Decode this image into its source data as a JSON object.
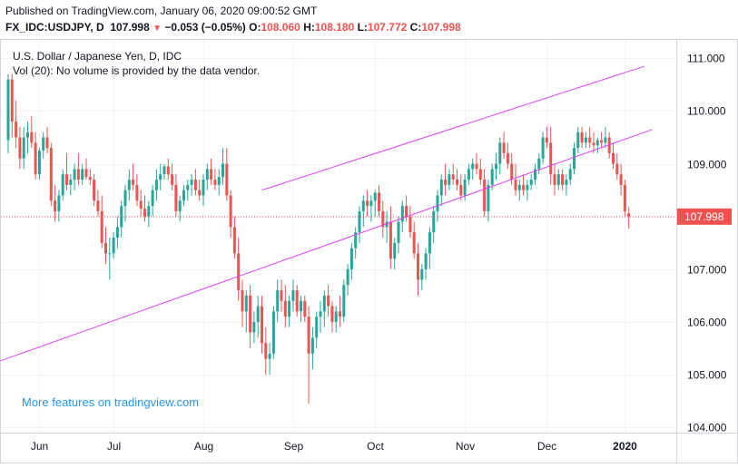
{
  "header": {
    "published": "Published on TradingView.com, January 06, 2020 09:00:52 GMT",
    "symbol": "FX_IDC:USDJPY, D",
    "last": "107.998",
    "change_arrow": "▼",
    "change": "−0.053 (−0.05%)",
    "open_label": "O:",
    "open": "108.060",
    "high_label": "H:",
    "high": "108.180",
    "low_label": "L:",
    "low": "107.772",
    "close_label": "C:",
    "close": "107.998"
  },
  "chart_data": {
    "type": "candlestick",
    "title": "U.S. Dollar / Japanese Yen, D, IDC",
    "subtitle": "Vol (20): No volume is provided by the data vendor.",
    "watermark": "More features on tradingview.com",
    "x_ticks": [
      "Jun",
      "Jul",
      "Aug",
      "Sep",
      "Oct",
      "Nov",
      "Dec",
      "2020"
    ],
    "y_ticks": [
      "111.000",
      "110.000",
      "109.000",
      "108.000",
      "107.000",
      "106.000",
      "105.000",
      "104.000"
    ],
    "ylim": [
      103.9,
      111.35
    ],
    "last_price": 107.998,
    "last_price_label": "107.998",
    "colors": {
      "up": "#26a69a",
      "down": "#ef5350",
      "trendline": "#e040fb",
      "price_line": "#ef5350",
      "watermark": "#2196f3"
    },
    "candles": [
      [
        109.45,
        110.7,
        109.2,
        110.6
      ],
      [
        110.6,
        110.7,
        109.5,
        109.8
      ],
      [
        109.8,
        110.2,
        109.3,
        109.5
      ],
      [
        109.5,
        109.7,
        108.9,
        109.1
      ],
      [
        109.1,
        109.7,
        108.9,
        109.5
      ],
      [
        109.5,
        109.8,
        109.2,
        109.6
      ],
      [
        109.6,
        109.9,
        109.3,
        109.4
      ],
      [
        109.4,
        109.6,
        108.7,
        108.8
      ],
      [
        108.8,
        109.3,
        108.7,
        109.25
      ],
      [
        109.25,
        109.6,
        109.1,
        109.5
      ],
      [
        109.5,
        109.7,
        109.2,
        109.3
      ],
      [
        109.3,
        109.4,
        108.2,
        108.3
      ],
      [
        108.3,
        108.6,
        107.9,
        108.1
      ],
      [
        108.1,
        108.5,
        107.9,
        108.4
      ],
      [
        108.4,
        108.9,
        108.3,
        108.8
      ],
      [
        108.8,
        109.2,
        108.5,
        108.6
      ],
      [
        108.6,
        108.8,
        108.4,
        108.7
      ],
      [
        108.7,
        109.0,
        108.5,
        108.9
      ],
      [
        108.9,
        109.2,
        108.6,
        108.7
      ],
      [
        108.7,
        109.0,
        108.6,
        108.9
      ],
      [
        108.9,
        109.1,
        108.7,
        108.75
      ],
      [
        108.75,
        108.9,
        108.6,
        108.7
      ],
      [
        108.7,
        108.8,
        108.2,
        108.3
      ],
      [
        108.3,
        108.5,
        108.0,
        108.1
      ],
      [
        108.1,
        108.4,
        107.4,
        107.5
      ],
      [
        107.5,
        107.8,
        107.1,
        107.3
      ],
      [
        107.3,
        107.6,
        106.8,
        107.3
      ],
      [
        107.3,
        107.7,
        107.2,
        107.6
      ],
      [
        107.6,
        108.0,
        107.4,
        107.8
      ],
      [
        107.8,
        108.3,
        107.6,
        108.2
      ],
      [
        108.2,
        108.6,
        107.9,
        108.5
      ],
      [
        108.5,
        108.9,
        108.3,
        108.7
      ],
      [
        108.7,
        109.0,
        108.5,
        108.6
      ],
      [
        108.6,
        108.8,
        108.2,
        108.3
      ],
      [
        108.3,
        108.5,
        108.0,
        108.15
      ],
      [
        108.15,
        108.4,
        107.9,
        108.0
      ],
      [
        108.0,
        108.3,
        107.8,
        108.2
      ],
      [
        108.2,
        108.6,
        108.0,
        108.5
      ],
      [
        108.5,
        108.9,
        108.3,
        108.7
      ],
      [
        108.7,
        109.0,
        108.5,
        108.8
      ],
      [
        108.8,
        109.0,
        108.7,
        108.95
      ],
      [
        108.95,
        109.1,
        108.7,
        108.8
      ],
      [
        108.8,
        109.0,
        108.5,
        108.6
      ],
      [
        108.6,
        108.8,
        108.0,
        108.1
      ],
      [
        108.1,
        108.4,
        107.9,
        108.3
      ],
      [
        108.3,
        108.6,
        108.2,
        108.5
      ],
      [
        108.5,
        108.7,
        108.3,
        108.6
      ],
      [
        108.6,
        108.8,
        108.4,
        108.7
      ],
      [
        108.7,
        108.9,
        108.4,
        108.5
      ],
      [
        108.5,
        108.7,
        108.3,
        108.4
      ],
      [
        108.4,
        108.8,
        108.2,
        108.7
      ],
      [
        108.7,
        109.0,
        108.5,
        108.9
      ],
      [
        108.9,
        109.1,
        108.6,
        108.7
      ],
      [
        108.7,
        108.9,
        108.5,
        108.6
      ],
      [
        108.6,
        108.9,
        108.4,
        108.75
      ],
      [
        108.75,
        109.3,
        108.6,
        109.0
      ],
      [
        109.0,
        109.3,
        108.3,
        108.4
      ],
      [
        108.4,
        108.5,
        107.6,
        107.8
      ],
      [
        107.8,
        108.0,
        107.2,
        107.3
      ],
      [
        107.3,
        107.6,
        106.4,
        106.6
      ],
      [
        106.6,
        106.8,
        105.9,
        106.2
      ],
      [
        106.2,
        106.6,
        105.8,
        106.5
      ],
      [
        106.5,
        106.7,
        105.5,
        105.8
      ],
      [
        105.8,
        106.2,
        105.6,
        106.0
      ],
      [
        106.0,
        106.5,
        105.7,
        106.3
      ],
      [
        106.3,
        106.5,
        105.4,
        105.6
      ],
      [
        105.6,
        105.9,
        105.0,
        105.3
      ],
      [
        105.3,
        105.6,
        105.0,
        105.4
      ],
      [
        105.4,
        106.3,
        105.3,
        106.2
      ],
      [
        106.2,
        106.8,
        106.0,
        106.6
      ],
      [
        106.6,
        106.8,
        106.2,
        106.4
      ],
      [
        106.4,
        106.7,
        105.9,
        106.1
      ],
      [
        106.1,
        106.5,
        105.9,
        106.4
      ],
      [
        106.4,
        106.8,
        106.2,
        106.6
      ],
      [
        106.6,
        106.7,
        106.1,
        106.2
      ],
      [
        106.2,
        106.5,
        106.0,
        106.4
      ],
      [
        106.4,
        106.5,
        106.0,
        106.1
      ],
      [
        106.1,
        106.3,
        104.45,
        105.4
      ],
      [
        105.4,
        105.9,
        105.1,
        105.7
      ],
      [
        105.7,
        106.2,
        105.5,
        106.1
      ],
      [
        106.1,
        106.4,
        105.8,
        106.2
      ],
      [
        106.2,
        106.6,
        105.9,
        106.5
      ],
      [
        106.5,
        106.7,
        106.1,
        106.3
      ],
      [
        106.3,
        106.4,
        105.8,
        106.0
      ],
      [
        106.0,
        106.3,
        105.8,
        106.2
      ],
      [
        106.2,
        106.5,
        105.9,
        106.1
      ],
      [
        106.1,
        106.8,
        106.0,
        106.7
      ],
      [
        106.7,
        107.1,
        106.5,
        107.0
      ],
      [
        107.0,
        107.5,
        106.8,
        107.4
      ],
      [
        107.4,
        107.8,
        107.2,
        107.7
      ],
      [
        107.7,
        108.2,
        107.5,
        108.1
      ],
      [
        108.1,
        108.4,
        107.8,
        108.3
      ],
      [
        108.3,
        108.5,
        108.0,
        108.2
      ],
      [
        108.2,
        108.4,
        107.9,
        108.3
      ],
      [
        108.3,
        108.5,
        108.0,
        108.45
      ],
      [
        108.45,
        108.6,
        108.0,
        108.1
      ],
      [
        108.1,
        108.3,
        107.6,
        107.8
      ],
      [
        107.8,
        108.1,
        107.5,
        107.9
      ],
      [
        107.9,
        108.2,
        107.0,
        107.2
      ],
      [
        107.2,
        107.6,
        107.0,
        107.5
      ],
      [
        107.5,
        108.0,
        107.3,
        107.9
      ],
      [
        107.9,
        108.3,
        107.7,
        108.2
      ],
      [
        108.2,
        108.4,
        107.9,
        108.0
      ],
      [
        108.0,
        108.2,
        107.6,
        107.7
      ],
      [
        107.7,
        107.9,
        107.2,
        107.3
      ],
      [
        107.3,
        107.5,
        106.5,
        106.8
      ],
      [
        106.8,
        107.1,
        106.6,
        107.0
      ],
      [
        107.0,
        107.4,
        106.8,
        107.3
      ],
      [
        107.3,
        107.8,
        107.0,
        107.7
      ],
      [
        107.7,
        108.2,
        107.5,
        108.1
      ],
      [
        108.1,
        108.5,
        107.9,
        108.4
      ],
      [
        108.4,
        108.8,
        108.2,
        108.7
      ],
      [
        108.7,
        109.0,
        108.4,
        108.6
      ],
      [
        108.6,
        108.9,
        108.5,
        108.8
      ],
      [
        108.8,
        109.0,
        108.6,
        108.7
      ],
      [
        108.7,
        108.9,
        108.5,
        108.6
      ],
      [
        108.6,
        108.8,
        108.3,
        108.4
      ],
      [
        108.4,
        108.8,
        108.3,
        108.7
      ],
      [
        108.7,
        109.0,
        108.6,
        108.9
      ],
      [
        108.9,
        109.1,
        108.7,
        109.0
      ],
      [
        109.0,
        109.2,
        108.8,
        108.9
      ],
      [
        108.9,
        109.1,
        108.6,
        108.7
      ],
      [
        108.7,
        108.9,
        108.0,
        108.1
      ],
      [
        108.1,
        108.7,
        107.9,
        108.6
      ],
      [
        108.6,
        109.0,
        108.5,
        108.9
      ],
      [
        108.9,
        109.2,
        108.7,
        109.0
      ],
      [
        109.0,
        109.5,
        108.8,
        109.4
      ],
      [
        109.4,
        109.6,
        109.1,
        109.2
      ],
      [
        109.2,
        109.4,
        108.9,
        109.0
      ],
      [
        109.0,
        109.2,
        108.6,
        108.7
      ],
      [
        108.7,
        109.0,
        108.4,
        108.5
      ],
      [
        108.5,
        108.7,
        108.3,
        108.6
      ],
      [
        108.6,
        108.8,
        108.4,
        108.5
      ],
      [
        108.5,
        108.7,
        108.3,
        108.6
      ],
      [
        108.6,
        108.8,
        108.5,
        108.7
      ],
      [
        108.7,
        109.0,
        108.6,
        108.9
      ],
      [
        108.9,
        109.2,
        108.8,
        109.1
      ],
      [
        109.1,
        109.6,
        109.0,
        109.5
      ],
      [
        109.5,
        109.7,
        109.3,
        109.4
      ],
      [
        109.4,
        109.7,
        108.6,
        108.8
      ],
      [
        108.8,
        109.0,
        108.4,
        108.6
      ],
      [
        108.6,
        108.9,
        108.5,
        108.8
      ],
      [
        108.8,
        108.9,
        108.5,
        108.6
      ],
      [
        108.6,
        108.8,
        108.4,
        108.7
      ],
      [
        108.7,
        109.0,
        108.6,
        108.9
      ],
      [
        108.9,
        109.4,
        108.8,
        109.3
      ],
      [
        109.3,
        109.7,
        109.2,
        109.6
      ],
      [
        109.6,
        109.7,
        109.3,
        109.4
      ],
      [
        109.4,
        109.6,
        109.3,
        109.5
      ],
      [
        109.5,
        109.7,
        109.3,
        109.4
      ],
      [
        109.4,
        109.6,
        109.2,
        109.35
      ],
      [
        109.35,
        109.5,
        109.2,
        109.45
      ],
      [
        109.45,
        109.6,
        109.3,
        109.4
      ],
      [
        109.4,
        109.7,
        109.3,
        109.5
      ],
      [
        109.5,
        109.6,
        109.1,
        109.2
      ],
      [
        109.2,
        109.4,
        108.9,
        109.0
      ],
      [
        109.0,
        109.2,
        108.7,
        108.8
      ],
      [
        108.8,
        109.0,
        108.4,
        108.6
      ],
      [
        108.6,
        108.7,
        108.0,
        108.1
      ],
      [
        108.06,
        108.18,
        107.772,
        107.998
      ]
    ],
    "trendlines": [
      {
        "from": [
          65,
          108.5
        ],
        "to": [
          163,
          110.85
        ]
      },
      {
        "from": [
          -31,
          104.5
        ],
        "to": [
          165,
          109.65
        ]
      }
    ]
  }
}
